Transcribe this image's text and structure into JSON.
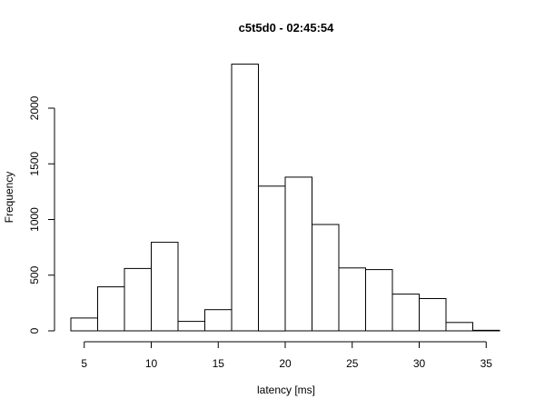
{
  "chart_data": {
    "type": "bar",
    "title": "c5t5d0 - 02:45:54",
    "xlabel": "latency [ms]",
    "ylabel": "Frequency",
    "bin_edges": [
      4,
      6,
      8,
      10,
      12,
      14,
      16,
      18,
      20,
      22,
      24,
      26,
      28,
      30,
      32,
      34,
      36
    ],
    "values": [
      115,
      395,
      560,
      795,
      85,
      190,
      2395,
      1300,
      1380,
      955,
      565,
      550,
      330,
      290,
      75,
      5
    ],
    "xlim": [
      4,
      36
    ],
    "ylim": [
      0,
      2000
    ],
    "x_ticks": [
      5,
      10,
      15,
      20,
      25,
      30,
      35
    ],
    "y_ticks": [
      0,
      500,
      1000,
      1500,
      2000
    ],
    "grid": false,
    "legend": "none"
  },
  "colors": {
    "background": "#ffffff",
    "bar_fill": "#ffffff",
    "bar_stroke": "#000000",
    "axis": "#000000",
    "text": "#000000"
  }
}
